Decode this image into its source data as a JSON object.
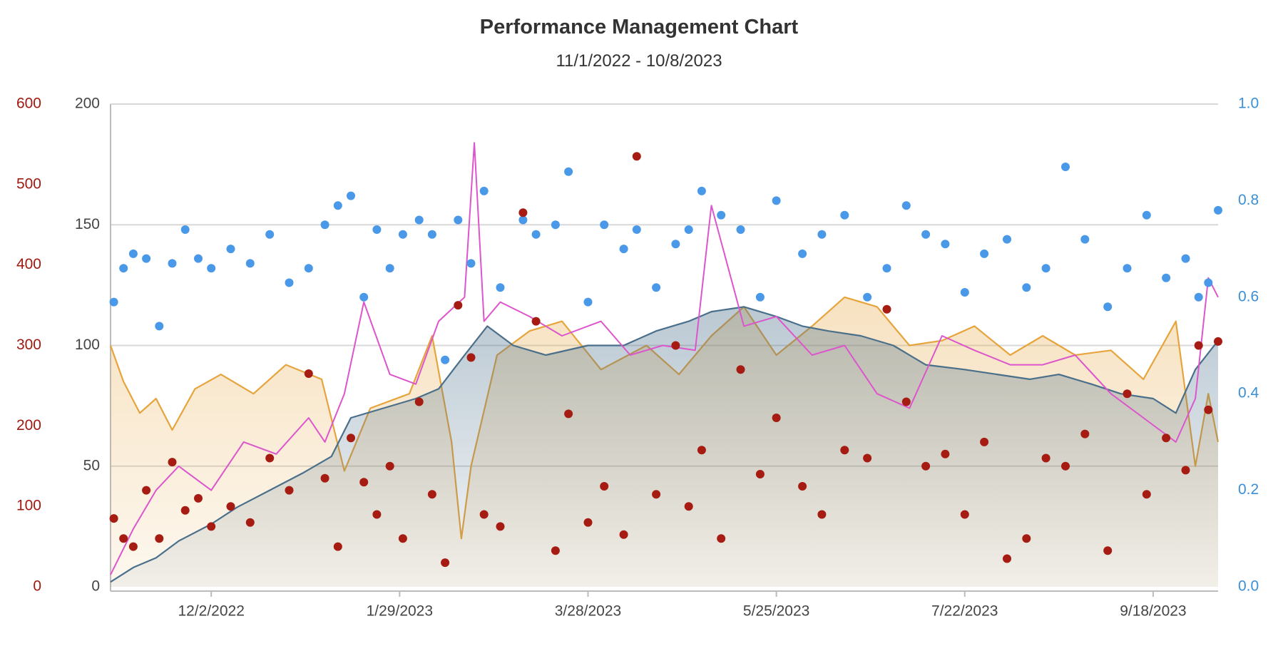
{
  "colors": {
    "left_axis": "#a01a10",
    "middle_axis": "#444444",
    "right_axis": "#3a8fd6",
    "fitness": "#4a6f8a",
    "fatigue": "#e6a43c",
    "form": "#dd55cc",
    "tss_points": "#a61c12",
    "if_points": "#4a98e8",
    "grid": "#d8d8d8"
  },
  "chart_data": {
    "type": "line",
    "title": "Performance Management Chart",
    "subtitle": "11/1/2022 - 10/8/2023",
    "x_range": [
      "2022-11-01",
      "2023-10-08"
    ],
    "x_ticks": [
      "12/2/2022",
      "1/29/2023",
      "3/28/2023",
      "5/25/2023",
      "7/22/2023",
      "9/18/2023"
    ],
    "y_axes": [
      {
        "position": "left-outer",
        "range": [
          0,
          600
        ],
        "ticks": [
          "0",
          "100",
          "200",
          "300",
          "400",
          "500",
          "600"
        ]
      },
      {
        "position": "left-inner",
        "range": [
          0,
          200
        ],
        "ticks": [
          "0",
          "50",
          "100",
          "150",
          "200"
        ]
      },
      {
        "position": "right",
        "range": [
          0,
          1
        ],
        "ticks": [
          "0.0",
          "0.2",
          "0.4",
          "0.6",
          "0.8",
          "1.0"
        ]
      }
    ],
    "grid": true,
    "legend": "none",
    "series": [
      {
        "type": "area",
        "axis": "left-inner",
        "x": [
          "2022-11-01",
          "2022-11-08",
          "2022-11-15",
          "2022-11-22",
          "2022-12-02",
          "2022-12-10",
          "2022-12-20",
          "2022-12-30",
          "2023-01-08",
          "2023-01-14",
          "2023-01-24",
          "2023-02-03",
          "2023-02-10",
          "2023-02-18",
          "2023-02-25",
          "2023-03-05",
          "2023-03-15",
          "2023-03-28",
          "2023-04-08",
          "2023-04-18",
          "2023-04-28",
          "2023-05-05",
          "2023-05-15",
          "2023-05-25",
          "2023-06-02",
          "2023-06-10",
          "2023-06-20",
          "2023-06-30",
          "2023-07-10",
          "2023-07-22",
          "2023-08-01",
          "2023-08-11",
          "2023-08-20",
          "2023-08-30",
          "2023-09-08",
          "2023-09-18",
          "2023-09-25",
          "2023-10-01",
          "2023-10-08"
        ],
        "values": [
          2,
          8,
          12,
          19,
          26,
          33,
          40,
          47,
          54,
          70,
          74,
          78,
          82,
          96,
          108,
          100,
          96,
          100,
          100,
          106,
          110,
          114,
          116,
          112,
          108,
          106,
          104,
          100,
          92,
          90,
          88,
          86,
          88,
          84,
          80,
          78,
          72,
          90,
          102
        ]
      },
      {
        "type": "area",
        "axis": "left-inner",
        "x": [
          "2022-11-01",
          "2022-11-05",
          "2022-11-10",
          "2022-11-15",
          "2022-11-20",
          "2022-11-27",
          "2022-12-05",
          "2022-12-15",
          "2022-12-25",
          "2023-01-05",
          "2023-01-12",
          "2023-01-20",
          "2023-02-01",
          "2023-02-08",
          "2023-02-14",
          "2023-02-17",
          "2023-02-20",
          "2023-02-28",
          "2023-03-10",
          "2023-03-20",
          "2023-04-01",
          "2023-04-15",
          "2023-04-25",
          "2023-05-05",
          "2023-05-15",
          "2023-05-25",
          "2023-06-05",
          "2023-06-15",
          "2023-06-25",
          "2023-07-05",
          "2023-07-15",
          "2023-07-25",
          "2023-08-05",
          "2023-08-15",
          "2023-08-25",
          "2023-09-05",
          "2023-09-15",
          "2023-09-25",
          "2023-10-01",
          "2023-10-05",
          "2023-10-08"
        ],
        "values": [
          100,
          85,
          72,
          78,
          65,
          82,
          88,
          80,
          92,
          86,
          48,
          74,
          80,
          104,
          60,
          20,
          50,
          96,
          106,
          110,
          90,
          100,
          88,
          104,
          116,
          96,
          108,
          120,
          116,
          100,
          102,
          108,
          96,
          104,
          96,
          98,
          86,
          110,
          50,
          80,
          60
        ]
      },
      {
        "type": "line",
        "axis": "left-inner",
        "x": [
          "2022-11-01",
          "2022-11-08",
          "2022-11-15",
          "2022-11-22",
          "2022-12-02",
          "2022-12-12",
          "2022-12-22",
          "2023-01-01",
          "2023-01-06",
          "2023-01-12",
          "2023-01-18",
          "2023-01-26",
          "2023-02-03",
          "2023-02-10",
          "2023-02-18",
          "2023-02-21",
          "2023-02-24",
          "2023-03-01",
          "2023-03-10",
          "2023-03-20",
          "2023-04-01",
          "2023-04-10",
          "2023-04-20",
          "2023-04-30",
          "2023-05-05",
          "2023-05-15",
          "2023-05-25",
          "2023-06-05",
          "2023-06-15",
          "2023-06-25",
          "2023-07-05",
          "2023-07-15",
          "2023-07-25",
          "2023-08-05",
          "2023-08-15",
          "2023-08-25",
          "2023-09-05",
          "2023-09-15",
          "2023-09-25",
          "2023-10-01",
          "2023-10-05",
          "2023-10-08"
        ],
        "values": [
          5,
          24,
          40,
          50,
          40,
          60,
          55,
          70,
          60,
          80,
          118,
          88,
          84,
          110,
          120,
          184,
          110,
          118,
          112,
          104,
          110,
          96,
          100,
          98,
          158,
          108,
          112,
          96,
          100,
          80,
          74,
          104,
          98,
          92,
          92,
          96,
          80,
          70,
          60,
          78,
          128,
          120
        ]
      },
      {
        "type": "scatter",
        "axis": "left-outer",
        "x": [
          "2022-11-02",
          "2022-11-05",
          "2022-11-08",
          "2022-11-12",
          "2022-11-16",
          "2022-11-20",
          "2022-11-24",
          "2022-11-28",
          "2022-12-02",
          "2022-12-08",
          "2022-12-14",
          "2022-12-20",
          "2022-12-26",
          "2023-01-01",
          "2023-01-06",
          "2023-01-10",
          "2023-01-14",
          "2023-01-18",
          "2023-01-22",
          "2023-01-26",
          "2023-01-30",
          "2023-02-04",
          "2023-02-08",
          "2023-02-12",
          "2023-02-16",
          "2023-02-20",
          "2023-02-24",
          "2023-03-01",
          "2023-03-08",
          "2023-03-12",
          "2023-03-18",
          "2023-03-22",
          "2023-03-28",
          "2023-04-02",
          "2023-04-08",
          "2023-04-12",
          "2023-04-18",
          "2023-04-24",
          "2023-04-28",
          "2023-05-02",
          "2023-05-08",
          "2023-05-14",
          "2023-05-20",
          "2023-05-25",
          "2023-06-02",
          "2023-06-08",
          "2023-06-15",
          "2023-06-22",
          "2023-06-28",
          "2023-07-04",
          "2023-07-10",
          "2023-07-16",
          "2023-07-22",
          "2023-07-28",
          "2023-08-04",
          "2023-08-10",
          "2023-08-16",
          "2023-08-22",
          "2023-08-28",
          "2023-09-04",
          "2023-09-10",
          "2023-09-16",
          "2023-09-22",
          "2023-09-28",
          "2023-10-02",
          "2023-10-05",
          "2023-10-08"
        ],
        "values": [
          85,
          60,
          50,
          120,
          60,
          155,
          95,
          110,
          75,
          100,
          80,
          160,
          120,
          265,
          135,
          50,
          185,
          130,
          90,
          150,
          60,
          230,
          115,
          30,
          350,
          285,
          90,
          75,
          465,
          330,
          45,
          215,
          80,
          125,
          65,
          535,
          115,
          300,
          100,
          170,
          60,
          270,
          140,
          210,
          125,
          90,
          170,
          160,
          345,
          230,
          150,
          165,
          90,
          180,
          35,
          60,
          160,
          150,
          190,
          45,
          240,
          115,
          185,
          145,
          300,
          220,
          305
        ]
      },
      {
        "type": "scatter",
        "axis": "right",
        "x": [
          "2022-11-02",
          "2022-11-05",
          "2022-11-08",
          "2022-11-12",
          "2022-11-16",
          "2022-11-20",
          "2022-11-24",
          "2022-11-28",
          "2022-12-02",
          "2022-12-08",
          "2022-12-14",
          "2022-12-20",
          "2022-12-26",
          "2023-01-01",
          "2023-01-06",
          "2023-01-10",
          "2023-01-14",
          "2023-01-18",
          "2023-01-22",
          "2023-01-26",
          "2023-01-30",
          "2023-02-04",
          "2023-02-08",
          "2023-02-12",
          "2023-02-16",
          "2023-02-20",
          "2023-02-24",
          "2023-03-01",
          "2023-03-08",
          "2023-03-12",
          "2023-03-18",
          "2023-03-22",
          "2023-03-28",
          "2023-04-02",
          "2023-04-08",
          "2023-04-12",
          "2023-04-18",
          "2023-04-24",
          "2023-04-28",
          "2023-05-02",
          "2023-05-08",
          "2023-05-14",
          "2023-05-20",
          "2023-05-25",
          "2023-06-02",
          "2023-06-08",
          "2023-06-15",
          "2023-06-22",
          "2023-06-28",
          "2023-07-04",
          "2023-07-10",
          "2023-07-16",
          "2023-07-22",
          "2023-07-28",
          "2023-08-04",
          "2023-08-10",
          "2023-08-16",
          "2023-08-22",
          "2023-08-28",
          "2023-09-04",
          "2023-09-10",
          "2023-09-16",
          "2023-09-22",
          "2023-09-28",
          "2023-10-02",
          "2023-10-05",
          "2023-10-08"
        ],
        "values": [
          0.59,
          0.66,
          0.69,
          0.68,
          0.54,
          0.67,
          0.74,
          0.68,
          0.66,
          0.7,
          0.67,
          0.73,
          0.63,
          0.66,
          0.75,
          0.79,
          0.81,
          0.6,
          0.74,
          0.66,
          0.73,
          0.76,
          0.73,
          0.47,
          0.76,
          0.67,
          0.82,
          0.62,
          0.76,
          0.73,
          0.75,
          0.86,
          0.59,
          0.75,
          0.7,
          0.74,
          0.62,
          0.71,
          0.74,
          0.82,
          0.77,
          0.74,
          0.6,
          0.8,
          0.69,
          0.73,
          0.77,
          0.6,
          0.66,
          0.79,
          0.73,
          0.71,
          0.61,
          0.69,
          0.72,
          0.62,
          0.66,
          0.87,
          0.72,
          0.58,
          0.66,
          0.77,
          0.64,
          0.68,
          0.6,
          0.63,
          0.78
        ]
      }
    ]
  }
}
